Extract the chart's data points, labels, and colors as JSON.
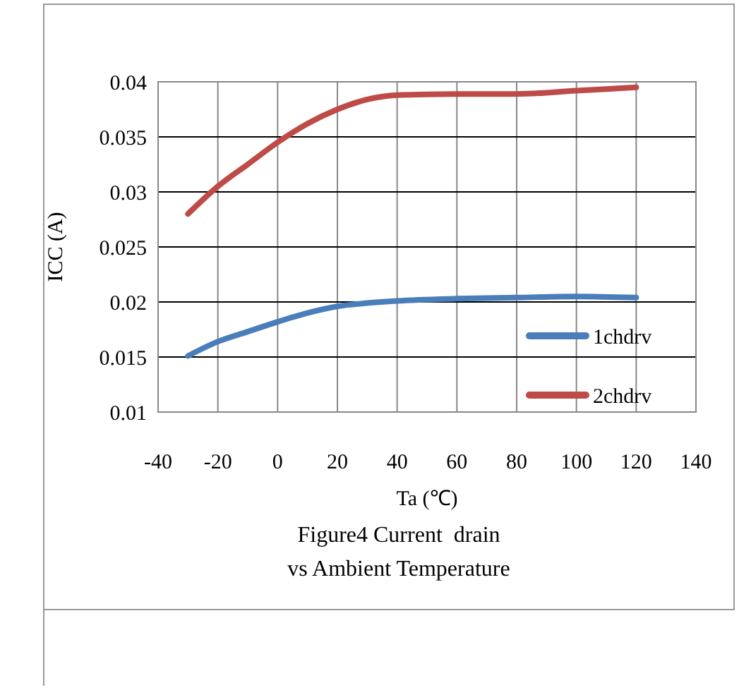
{
  "chart_data": {
    "type": "line",
    "xlabel": "Ta (℃)",
    "ylabel": "ICC (A)",
    "annotations": [
      "Figure4 Current  drain",
      "vs Ambient Temperature"
    ],
    "x": [
      -30,
      -20,
      -10,
      0,
      10,
      20,
      30,
      40,
      60,
      80,
      100,
      120
    ],
    "series": [
      {
        "name": "1chdrv",
        "color": "#4a7ebb",
        "values": [
          0.0151,
          0.0164,
          0.0173,
          0.0182,
          0.019,
          0.0196,
          0.0199,
          0.0201,
          0.0203,
          0.0204,
          0.0205,
          0.0204
        ]
      },
      {
        "name": "2chdrv",
        "color": "#be4b48",
        "values": [
          0.028,
          0.0305,
          0.0325,
          0.0345,
          0.0362,
          0.0375,
          0.0384,
          0.0388,
          0.0389,
          0.0389,
          0.0392,
          0.0395
        ]
      }
    ],
    "xlim": [
      -40,
      140
    ],
    "xticks": [
      -40,
      -20,
      0,
      20,
      40,
      60,
      80,
      100,
      120,
      140
    ],
    "ylim": [
      0.01,
      0.04
    ],
    "yticks": [
      0.01,
      0.015,
      0.02,
      0.025,
      0.03,
      0.035,
      0.04
    ],
    "grid": true,
    "legend": "bottom right",
    "line_style": "solid"
  }
}
